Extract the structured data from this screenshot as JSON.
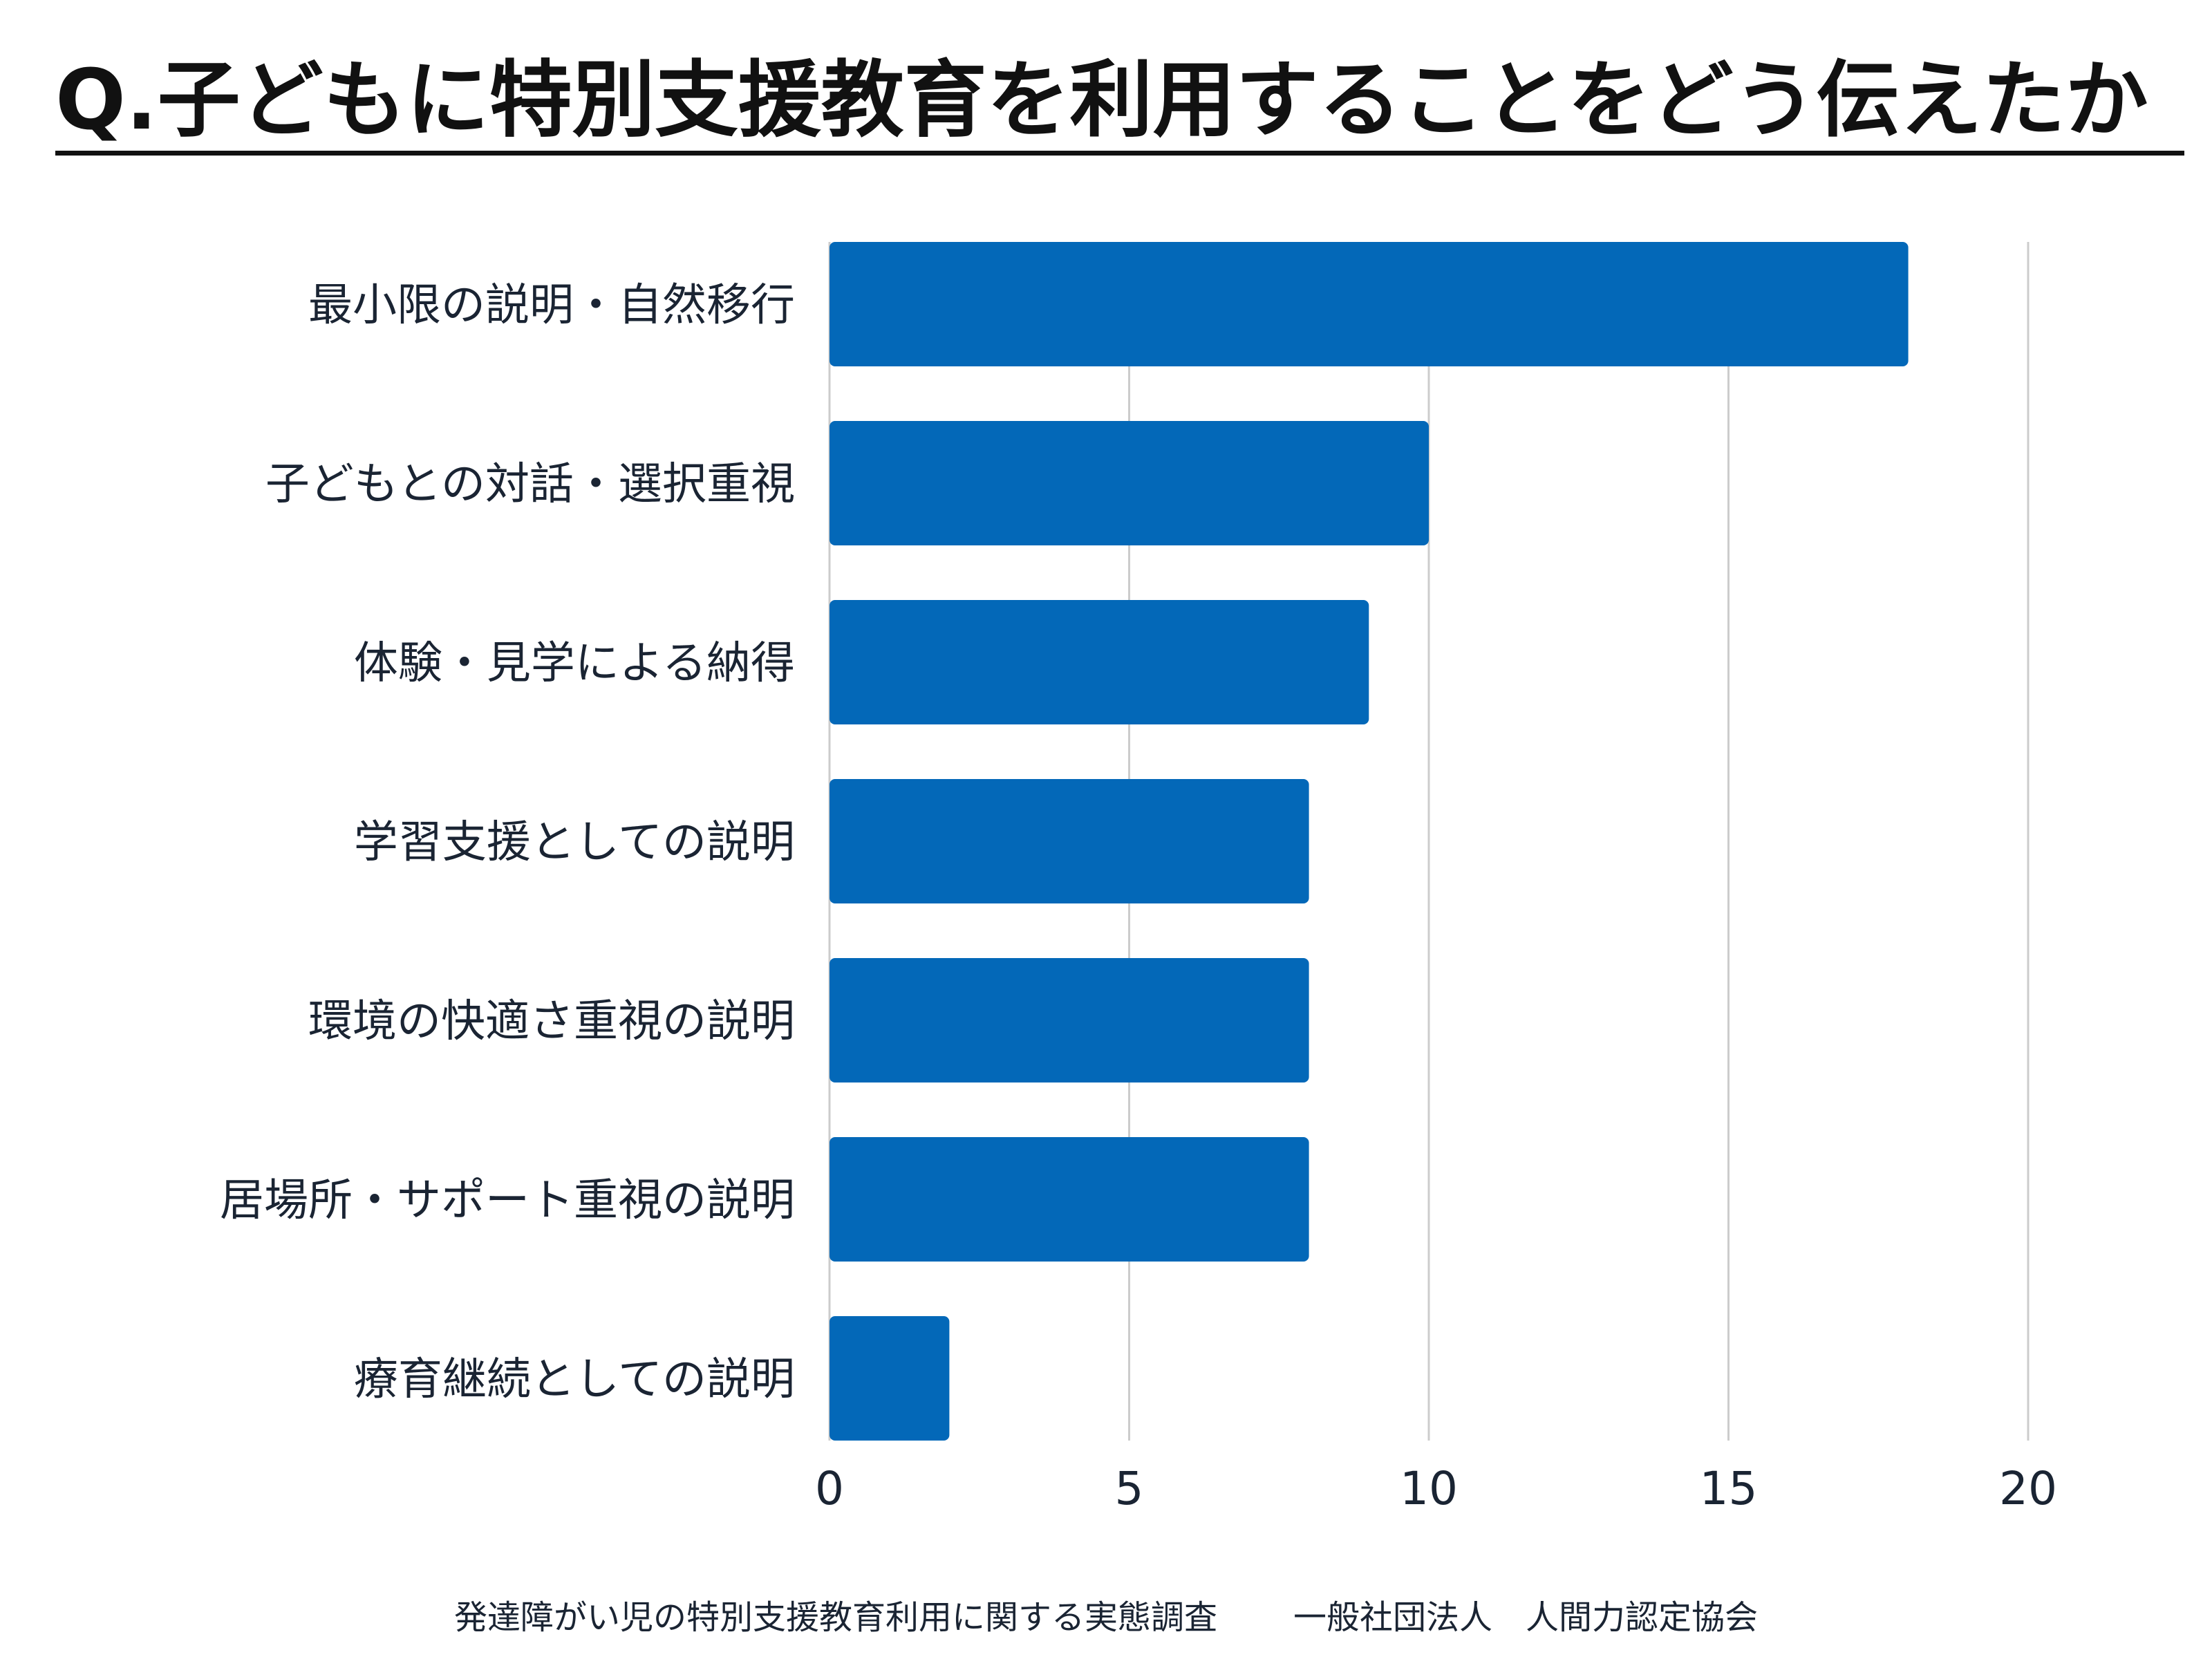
{
  "chart_data": {
    "type": "bar",
    "orientation": "horizontal",
    "title": "Q.子どもに特別支援教育を利用することをどう伝えたか",
    "categories": [
      "最小限の説明・自然移行",
      "子どもとの対話・選択重視",
      "体験・見学による納得",
      "学習支援としての説明",
      "環境の快適さ重視の説明",
      "居場所・サポート重視の説明",
      "療育継続としての説明"
    ],
    "values": [
      18,
      10,
      9,
      8,
      8,
      8,
      2
    ],
    "xlim": [
      0,
      20
    ],
    "xticks": [
      "0",
      "5",
      "10",
      "15",
      "20"
    ],
    "grid": true,
    "bar_color": "#0368b8",
    "grid_color": "#cccccc"
  },
  "footer": {
    "survey": "発達障がい児の特別支援教育利用に関する実態調査",
    "organization": "一般社団法人　人間力認定協会"
  }
}
